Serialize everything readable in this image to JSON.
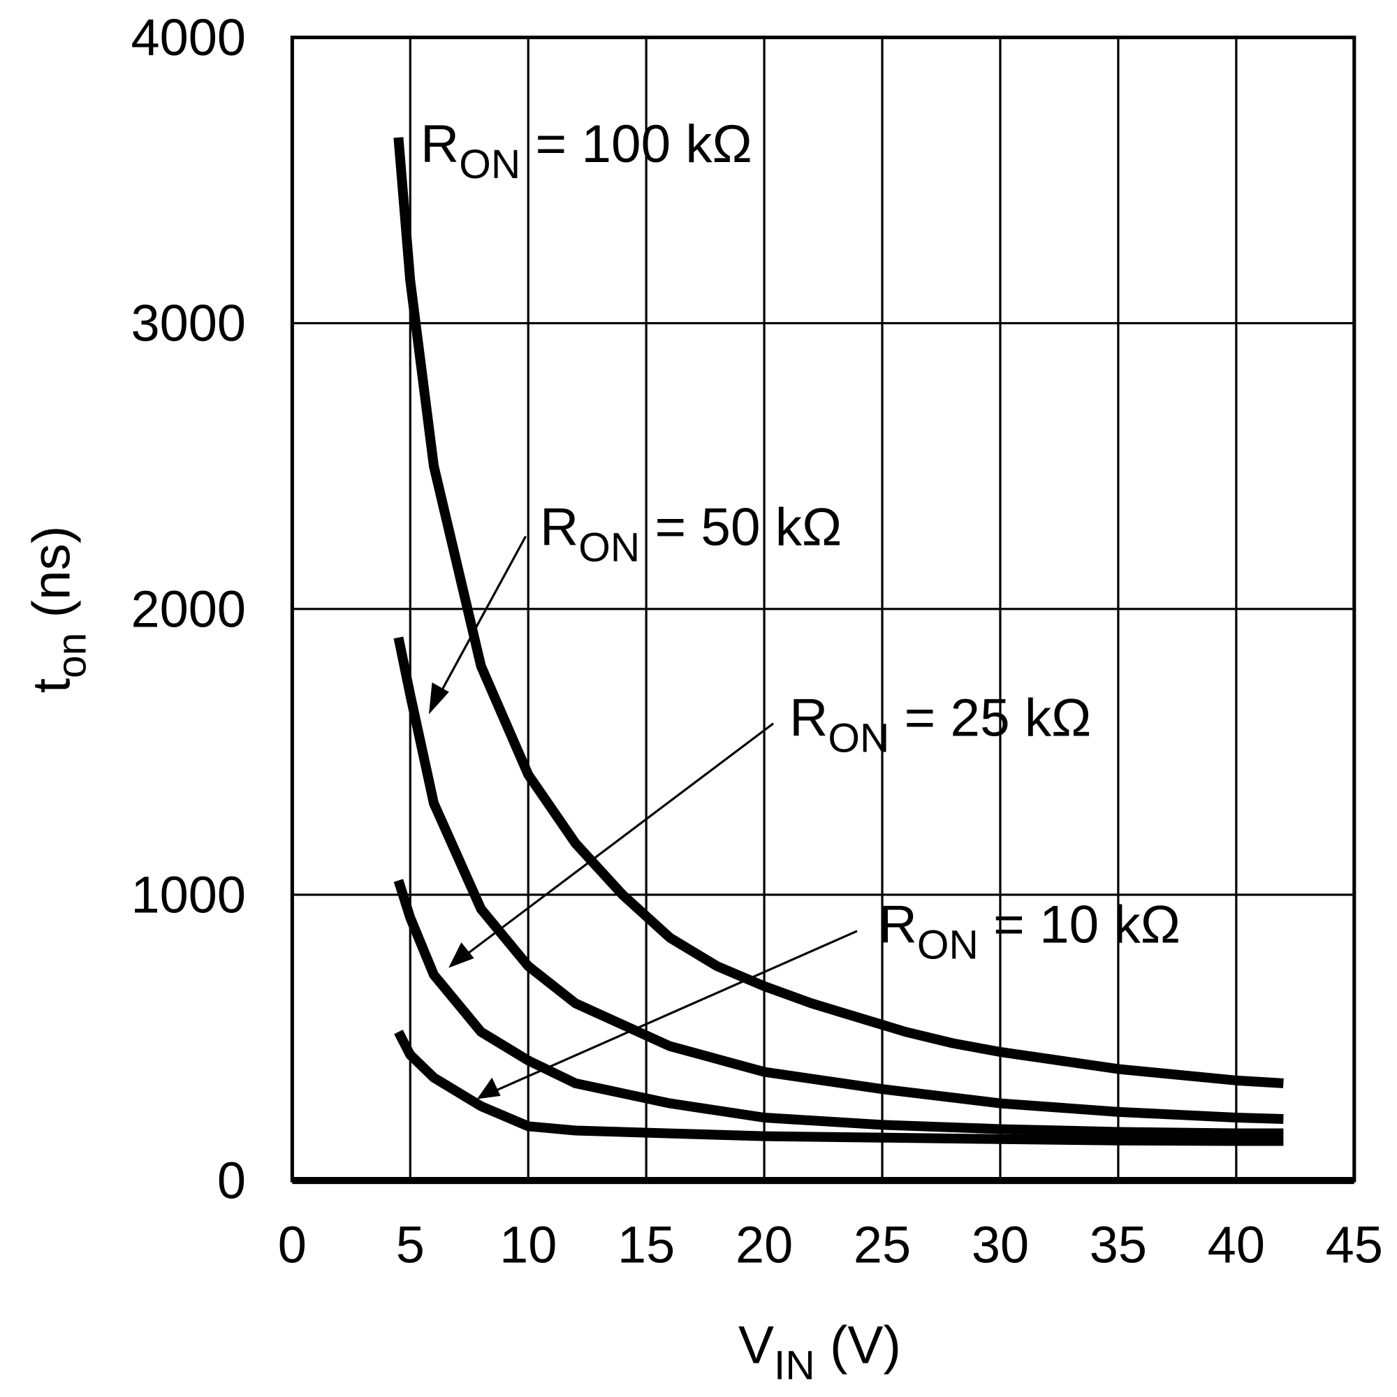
{
  "chart_data": {
    "type": "line",
    "xlabel": {
      "main": "V",
      "sub": "IN",
      "unit": " (V)"
    },
    "ylabel": {
      "main": "t",
      "sub": "on",
      "unit": " (ns)"
    },
    "xlim": [
      0,
      45
    ],
    "ylim": [
      0,
      4000
    ],
    "xticks": [
      "0",
      "5",
      "10",
      "15",
      "20",
      "25",
      "30",
      "35",
      "40",
      "45"
    ],
    "yticks": [
      "0",
      "1000",
      "2000",
      "3000",
      "4000"
    ],
    "grid": true,
    "line_color": "#000000",
    "series": [
      {
        "name": "R_ON = 100 kΩ",
        "label": {
          "main": "R",
          "sub": "ON",
          "rest": " = 100 kΩ"
        },
        "x": [
          4.5,
          5,
          6,
          8,
          10,
          12,
          14,
          16,
          18,
          20,
          22,
          24,
          26,
          28,
          30,
          35,
          40,
          42
        ],
        "y": [
          3650,
          3150,
          2500,
          1800,
          1420,
          1180,
          1000,
          850,
          750,
          680,
          620,
          570,
          520,
          480,
          450,
          390,
          350,
          340
        ]
      },
      {
        "name": "R_ON = 50 kΩ",
        "label": {
          "main": "R",
          "sub": "ON",
          "rest": " = 50 kΩ"
        },
        "x": [
          4.5,
          5,
          6,
          8,
          10,
          12,
          16,
          20,
          25,
          30,
          35,
          40,
          42
        ],
        "y": [
          1900,
          1700,
          1320,
          950,
          750,
          620,
          470,
          380,
          320,
          270,
          240,
          220,
          215
        ]
      },
      {
        "name": "R_ON = 25 kΩ",
        "label": {
          "main": "R",
          "sub": "ON",
          "rest": " = 25 kΩ"
        },
        "x": [
          4.5,
          5,
          6,
          8,
          10,
          12,
          16,
          20,
          25,
          30,
          35,
          40,
          42
        ],
        "y": [
          1050,
          920,
          720,
          520,
          420,
          340,
          270,
          220,
          195,
          180,
          170,
          165,
          165
        ]
      },
      {
        "name": "R_ON = 10 kΩ",
        "label": {
          "main": "R",
          "sub": "ON",
          "rest": " = 10 kΩ"
        },
        "x": [
          4.5,
          5,
          6,
          8,
          10,
          12,
          16,
          20,
          25,
          30,
          35,
          40,
          42
        ],
        "y": [
          520,
          440,
          360,
          260,
          190,
          175,
          165,
          155,
          150,
          145,
          140,
          138,
          138
        ]
      }
    ]
  }
}
